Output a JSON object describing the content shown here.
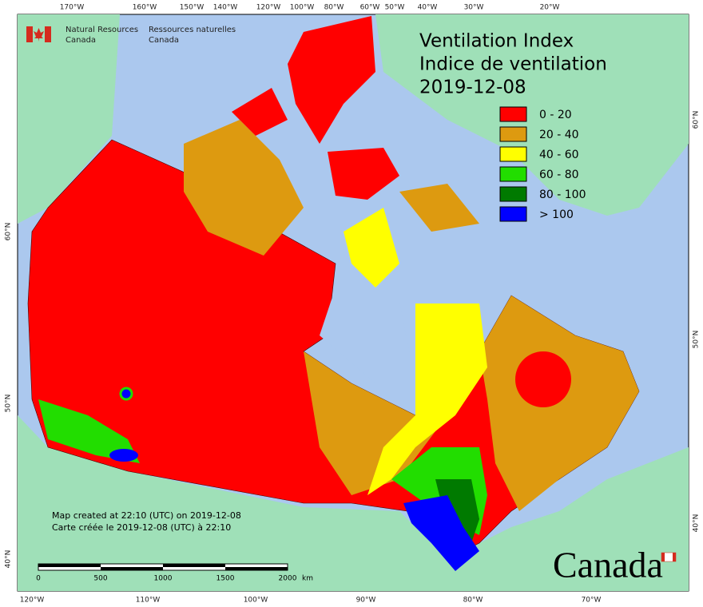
{
  "title": {
    "line1": "Ventilation Index",
    "line2": "Indice de ventilation",
    "date": "2019-12-08"
  },
  "agency": {
    "en_line1": "Natural Resources",
    "en_line2": "Canada",
    "fr_line1": "Ressources naturelles",
    "fr_line2": "Canada"
  },
  "legend": {
    "items": [
      {
        "label": "0 - 20",
        "color": "#ff0000"
      },
      {
        "label": "20 - 40",
        "color": "#dd9a10"
      },
      {
        "label": "40 - 60",
        "color": "#ffff00"
      },
      {
        "label": "60 - 80",
        "color": "#22dd00"
      },
      {
        "label": "80 - 100",
        "color": "#007a00"
      },
      {
        "label": "> 100",
        "color": "#0000ff"
      }
    ]
  },
  "graticule": {
    "top": [
      "170°W",
      "160°W",
      "150°W",
      "140°W",
      "120°W",
      "100°W",
      "80°W",
      "60°W",
      "50°W",
      "40°W",
      "30°W",
      "20°W"
    ],
    "bottom": [
      "120°W",
      "110°W",
      "100°W",
      "90°W",
      "80°W",
      "70°W"
    ],
    "left": [
      "60°N",
      "50°N",
      "40°N"
    ],
    "right": [
      "60°N",
      "50°N",
      "40°N"
    ]
  },
  "notes": {
    "en": "Map created at 22:10 (UTC) on 2019-12-08",
    "fr": "Carte créée le 2019-12-08 (UTC) à 22:10"
  },
  "scale_bar": {
    "ticks": [
      "0",
      "500",
      "1000",
      "1500",
      "2000"
    ],
    "unit": "km"
  },
  "wordmark": "Canada"
}
